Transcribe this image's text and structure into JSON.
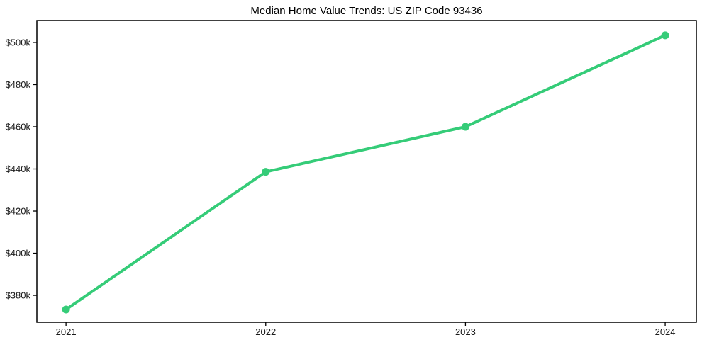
{
  "title": "Median Home Value Trends: US ZIP Code 93436",
  "chart_data": {
    "type": "line",
    "title": "Median Home Value Trends: US ZIP Code 93436",
    "x": [
      2021,
      2022,
      2023,
      2024
    ],
    "x_labels": [
      "2021",
      "2022",
      "2023",
      "2024"
    ],
    "series": [
      {
        "name": "Median Home Value",
        "values": [
          373300,
          438600,
          460000,
          503400
        ]
      }
    ],
    "y_ticks": [
      380000,
      400000,
      420000,
      440000,
      460000,
      480000,
      500000
    ],
    "y_tick_labels": [
      "$380k",
      "$400k",
      "$420k",
      "$440k",
      "$460k",
      "$480k",
      "$500k"
    ],
    "xlim": [
      2020.854,
      2024.156
    ],
    "ylim": [
      367250,
      510400
    ],
    "xlabel": "",
    "ylabel": "",
    "grid": false,
    "legend": "none",
    "line_color": "#35cc78",
    "marker": "circle",
    "axis_color": "#000000",
    "text_color": "#1a1a1a"
  }
}
